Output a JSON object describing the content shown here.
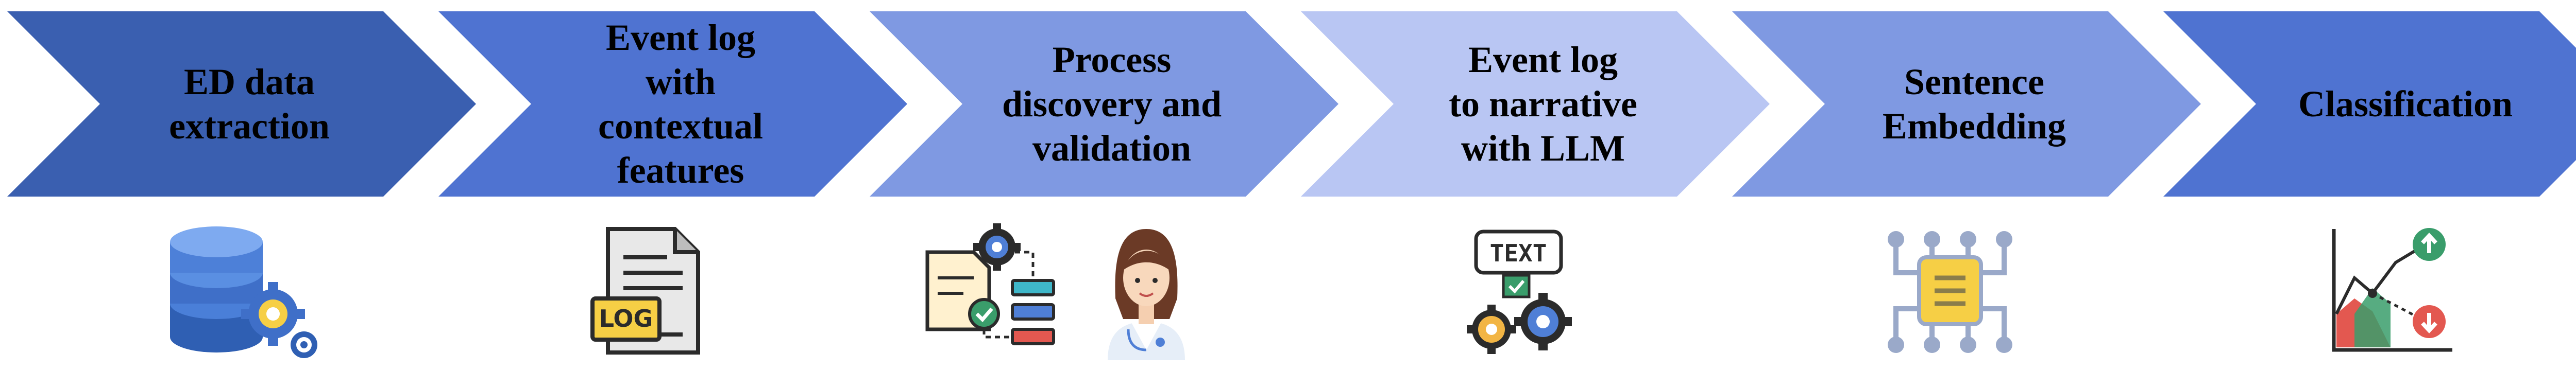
{
  "steps": [
    {
      "label": "ED data\nextraction",
      "fill": "#3a5fb0",
      "icon": "database-gear-icon"
    },
    {
      "label": "Event log\nwith\ncontextual\nfeatures",
      "fill": "#4f73d1",
      "icon": "log-file-icon"
    },
    {
      "label": "Process\ndiscovery and\nvalidation",
      "fill": "#7f99e2",
      "icon": "process-doctor-icon"
    },
    {
      "label": "Event log\nto narrative\nwith LLM",
      "fill": "#b9c6f3",
      "icon": "text-gears-icon"
    },
    {
      "label": "Sentence\nEmbedding",
      "fill": "#7f99e2",
      "icon": "embedding-chip-icon"
    },
    {
      "label": "Classification",
      "fill": "#4f73d1",
      "icon": "classification-chart-icon"
    }
  ],
  "icons": {
    "log_text": "LOG",
    "text_badge": "TEXT"
  },
  "colors": {
    "outline": "#2b2b2b",
    "yellow": "#f6cf45",
    "orange": "#f2b544",
    "blue": "#4f7fd6",
    "green": "#3a9d6b",
    "red": "#e35850",
    "teal": "#3fb7c9",
    "icon_gray": "#9aa9c9"
  }
}
